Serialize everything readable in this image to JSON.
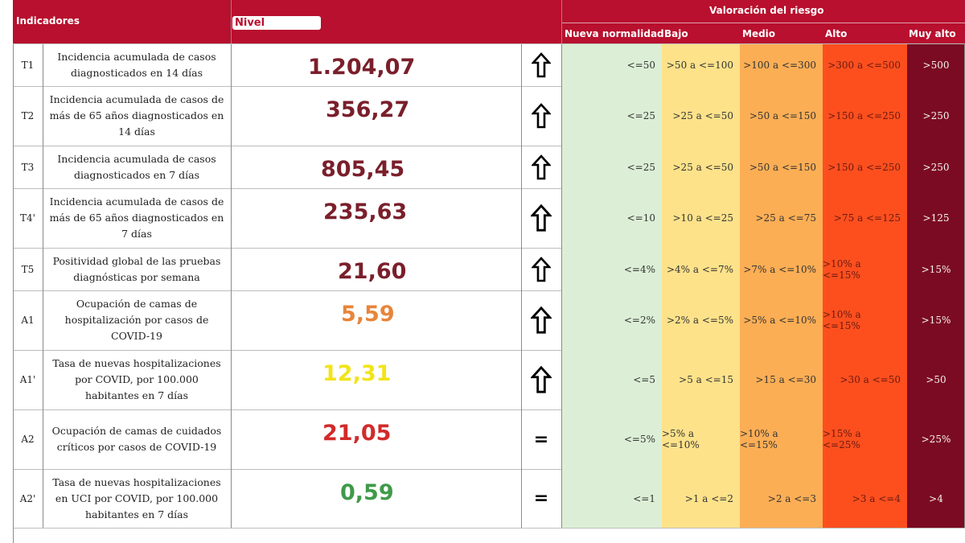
{
  "header": {
    "indicadores": "Indicadores",
    "nivel": "Nivel",
    "valoracion": "Valoración del riesgo",
    "levels": [
      "Nueva normalidad",
      "Bajo",
      "Medio",
      "Alto",
      "Muy alto"
    ]
  },
  "colors": {
    "header_bg": "#b8102e",
    "nueva_normalidad": "#dcefd6",
    "bajo": "#fde28a",
    "medio": "#fcae55",
    "alto": "#fd4f1e",
    "muy_alto": "#7b0b22"
  },
  "rows": [
    {
      "code": "T1",
      "desc": "Incidencia acumulada de casos diagnosticados en 14 días",
      "value": "1.204,07",
      "value_color": "#7a1f2b",
      "trend": "up",
      "ranges": [
        "<=50",
        ">50 a <=100",
        ">100 a <=300",
        ">300 a <=500",
        ">500"
      ]
    },
    {
      "code": "T2",
      "desc": "Incidencia acumulada de casos de más de 65 años diagnosticados en 14 días",
      "value": "356,27",
      "value_color": "#7a1f2b",
      "trend": "up",
      "ranges": [
        "<=25",
        ">25 a <=50",
        ">50 a <=150",
        ">150 a <=250",
        ">250"
      ]
    },
    {
      "code": "T3",
      "desc": "Incidencia acumulada de casos diagnosticados en 7 días",
      "value": "805,45",
      "value_color": "#7a1f2b",
      "trend": "up",
      "ranges": [
        "<=25",
        ">25 a <=50",
        ">50 a <=150",
        ">150 a <=250",
        ">250"
      ]
    },
    {
      "code": "T4'",
      "desc": "Incidencia acumulada de casos de más de 65 años diagnosticados en 7 días",
      "value": "235,63",
      "value_color": "#7a1f2b",
      "trend": "up",
      "ranges": [
        "<=10",
        ">10 a <=25",
        ">25 a <=75",
        ">75 a <=125",
        ">125"
      ]
    },
    {
      "code": "T5",
      "desc": "Positividad global de las pruebas diagnósticas por semana",
      "value": "21,60",
      "value_color": "#7a1f2b",
      "trend": "up",
      "ranges": [
        "<=4%",
        ">4% a <=7%",
        ">7% a <=10%",
        ">10% a <=15%",
        ">15%"
      ]
    },
    {
      "code": "A1",
      "desc": "Ocupación de camas de hospitalización por casos de COVID-19",
      "value": "5,59",
      "value_color": "#e8853a",
      "trend": "up",
      "ranges": [
        "<=2%",
        ">2% a <=5%",
        ">5% a <=10%",
        ">10% a <=15%",
        ">15%"
      ]
    },
    {
      "code": "A1'",
      "desc": "Tasa de nuevas hospitalizaciones por COVID, por 100.000 habitantes en 7 días",
      "value": "12,31",
      "value_color": "#f2e418",
      "trend": "up",
      "ranges": [
        "<=5",
        ">5 a <=15",
        ">15 a <=30",
        ">30 a <=50",
        ">50"
      ]
    },
    {
      "code": "A2",
      "desc": "Ocupación de camas de cuidados críticos por casos de COVID-19",
      "value": "21,05",
      "value_color": "#d22a2a",
      "trend": "=",
      "ranges": [
        "<=5%",
        ">5% a <=10%",
        ">10% a <=15%",
        ">15% a <=25%",
        ">25%"
      ]
    },
    {
      "code": "A2'",
      "desc": "Tasa de nuevas hospitalizaciones en UCI por COVID, por 100.000 habitantes en 7 días",
      "value": "0,59",
      "value_color": "#3f9a4a",
      "trend": "=",
      "ranges": [
        "<=1",
        ">1 a <=2",
        ">2 a <=3",
        ">3 a <=4",
        ">4"
      ]
    }
  ]
}
